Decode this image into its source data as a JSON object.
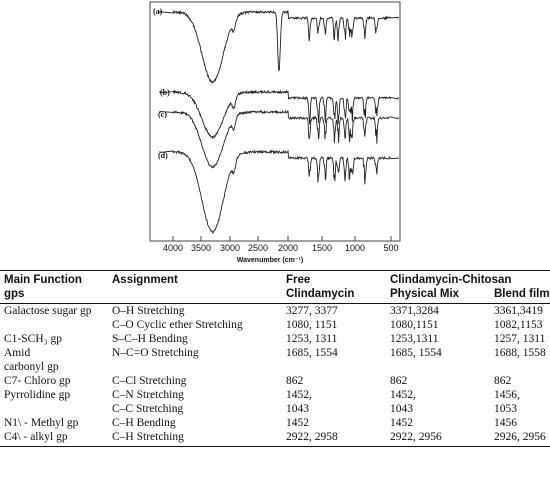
{
  "figure": {
    "curve_labels": [
      "(a)",
      "(b)",
      "(c)",
      "(d)"
    ],
    "x_ticks": [
      "4000",
      "3500",
      "3000",
      "2500",
      "2000",
      "1500",
      "1000",
      "500"
    ],
    "x_label": "Wavenumber (cm⁻¹)"
  },
  "table": {
    "headers": {
      "group_top": "Main Function",
      "group_bottom": "gps",
      "assignment": "Assignment",
      "free_top": "Free",
      "free_bottom": "Clindamycin",
      "cc_top": "Clindamycin-Chitosan",
      "physical": "Physical Mix",
      "blend": "Blend film"
    },
    "rows": [
      [
        "Galactose sugar gp",
        "O–H Stretching",
        "3277, 3377",
        "3371,3284",
        "3361,3419"
      ],
      [
        "",
        "C–O Cyclic ether Stretching",
        "1080, 1151",
        "1080,1151",
        "1082,1153"
      ],
      [
        "C1-SCH₃ gp",
        "S–C–H Bending",
        "1253, 1311",
        "1253,1311",
        "1257, 1311"
      ],
      [
        "Amid",
        "N–C=O Stretching",
        "1685, 1554",
        "1685, 1554",
        "1688, 1558"
      ],
      [
        "carbonyl gp",
        "",
        "",
        "",
        ""
      ],
      [
        "C7- Chloro gp",
        "C–Cl Stretching",
        "862",
        "862",
        "862"
      ],
      [
        "Pyrrolidine gp",
        "C–N Stretching",
        "1452,",
        "1452,",
        "1456,"
      ],
      [
        "",
        "C–C Stretching",
        "1043",
        "1043",
        "1053"
      ],
      [
        "N1\\ - Methyl gp",
        "C–H Bending",
        "1452",
        "1452",
        "1456"
      ],
      [
        "C4\\ - alkyl gp",
        "C–H Stretching",
        "2922, 2958",
        "2922, 2956",
        "2926, 2956"
      ]
    ]
  }
}
